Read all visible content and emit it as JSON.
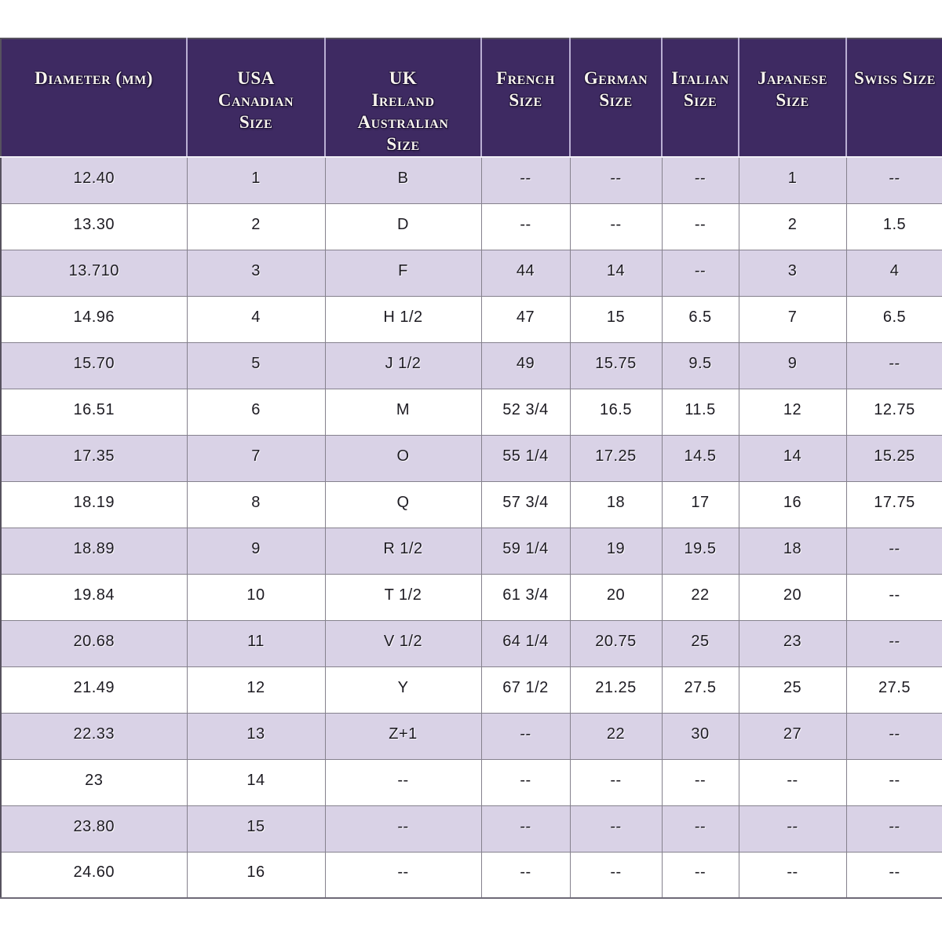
{
  "colors": {
    "header_bg": "#3e2a62",
    "header_text": "#f8f4ee",
    "row_alt_bg": "#d9d2e6",
    "row_bg": "#ffffff",
    "cell_border": "#85818d",
    "body_text": "#1d1b22"
  },
  "chart_data": {
    "type": "table",
    "title": "",
    "columns": [
      {
        "id": "diameter-mm",
        "label": "Diameter (mm)",
        "lines": [
          "Diameter (mm)"
        ]
      },
      {
        "id": "usa-canadian-size",
        "label": "USA Canadian Size",
        "lines": [
          "USA",
          "Canadian",
          "Size"
        ]
      },
      {
        "id": "uk-ireland-australian-size",
        "label": "UK Ireland Australian Size",
        "lines": [
          "UK",
          "Ireland",
          "Australian",
          "Size"
        ]
      },
      {
        "id": "french-size",
        "label": "French Size",
        "lines": [
          "French",
          "Size"
        ]
      },
      {
        "id": "german-size",
        "label": "German Size",
        "lines": [
          "German",
          "Size"
        ]
      },
      {
        "id": "italian-size",
        "label": "Italian Size",
        "lines": [
          "Italian",
          "Size"
        ]
      },
      {
        "id": "japanese-size",
        "label": "Japanese Size",
        "lines": [
          "Japanese Size"
        ]
      },
      {
        "id": "swiss-size",
        "label": "Swiss Size",
        "lines": [
          "Swiss Size"
        ]
      }
    ],
    "rows": [
      [
        "12.40",
        "1",
        "B",
        "--",
        "--",
        "--",
        "1",
        "--"
      ],
      [
        "13.30",
        "2",
        "D",
        "--",
        "--",
        "--",
        "2",
        "1.5"
      ],
      [
        "13.710",
        "3",
        "F",
        "44",
        "14",
        "--",
        "3",
        "4"
      ],
      [
        "14.96",
        "4",
        "H 1/2",
        "47",
        "15",
        "6.5",
        "7",
        "6.5"
      ],
      [
        "15.70",
        "5",
        "J 1/2",
        "49",
        "15.75",
        "9.5",
        "9",
        "--"
      ],
      [
        "16.51",
        "6",
        "M",
        "52 3/4",
        "16.5",
        "11.5",
        "12",
        "12.75"
      ],
      [
        "17.35",
        "7",
        "O",
        "55 1/4",
        "17.25",
        "14.5",
        "14",
        "15.25"
      ],
      [
        "18.19",
        "8",
        "Q",
        "57 3/4",
        "18",
        "17",
        "16",
        "17.75"
      ],
      [
        "18.89",
        "9",
        "R 1/2",
        "59 1/4",
        "19",
        "19.5",
        "18",
        "--"
      ],
      [
        "19.84",
        "10",
        "T 1/2",
        "61 3/4",
        "20",
        "22",
        "20",
        "--"
      ],
      [
        "20.68",
        "11",
        "V 1/2",
        "64 1/4",
        "20.75",
        "25",
        "23",
        "--"
      ],
      [
        "21.49",
        "12",
        "Y",
        "67 1/2",
        "21.25",
        "27.5",
        "25",
        "27.5"
      ],
      [
        "22.33",
        "13",
        "Z+1",
        "--",
        "22",
        "30",
        "27",
        "--"
      ],
      [
        "23",
        "14",
        "--",
        "--",
        "--",
        "--",
        "--",
        "--"
      ],
      [
        "23.80",
        "15",
        "--",
        "--",
        "--",
        "--",
        "--",
        "--"
      ],
      [
        "24.60",
        "16",
        "--",
        "--",
        "--",
        "--",
        "--",
        "--"
      ]
    ]
  }
}
